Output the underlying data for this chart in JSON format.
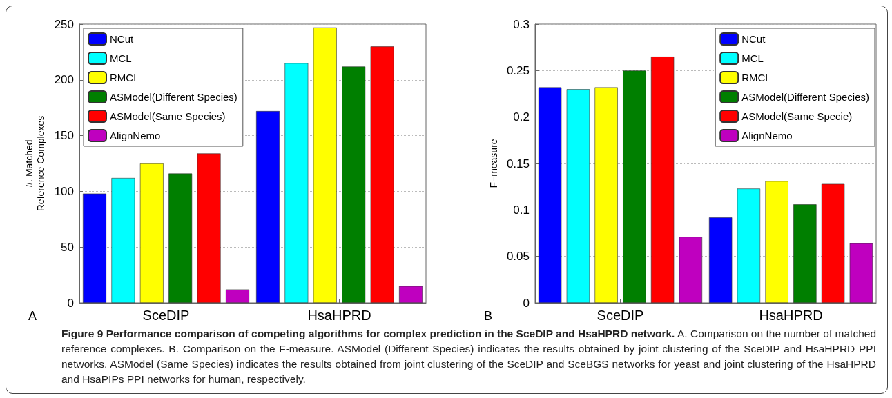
{
  "chart_data": [
    {
      "type": "bar",
      "ylabel": "#. Matched\nReference Complexes",
      "categories": [
        "SceDIP",
        "HsaHPRD"
      ],
      "ylim": [
        0,
        250
      ],
      "yticks": [
        0,
        50,
        100,
        150,
        200,
        250
      ],
      "grid": "y",
      "legend": "top left",
      "series": [
        {
          "name": "NCut",
          "color": "#0000ff",
          "values": [
            98,
            172
          ]
        },
        {
          "name": "MCL",
          "color": "#00ffff",
          "values": [
            112,
            215
          ]
        },
        {
          "name": "RMCL",
          "color": "#ffff00",
          "values": [
            125,
            247
          ]
        },
        {
          "name": "ASModel(Different Species)",
          "color": "#007f00",
          "values": [
            116,
            212
          ]
        },
        {
          "name": "ASModel(Same Species)",
          "color": "#ff0000",
          "values": [
            134,
            230
          ]
        },
        {
          "name": "AlignNemo",
          "color": "#bf00bf",
          "values": [
            12,
            15
          ]
        }
      ],
      "annotations": [
        "A",
        "Figure 9 Performance comparison of competing algorithms for complex prediction in the SceDIP and HsaHPRD network.",
        "A. Comparison on the number of matched reference complexes. B. Comparison on the F-measure. ASModel (Different Species) indicates the results obtained by joint clustering of the SceDIP and HsaHPRD PPI networks. ASModel (Same Species) indicates the results obtained from joint clustering of the SceDIP and SceBGS networks for yeast and joint clustering of the HsaHPRD and HsaPIPs PPI networks for human, respectively."
      ]
    },
    {
      "type": "bar",
      "ylabel": "F−measure",
      "categories": [
        "SceDIP",
        "HsaHPRD"
      ],
      "ylim": [
        0,
        0.3
      ],
      "yticks": [
        0,
        0.05,
        0.1,
        0.15,
        0.2,
        0.25,
        0.3
      ],
      "grid": "y",
      "legend": "top right",
      "series": [
        {
          "name": "NCut",
          "color": "#0000ff",
          "values": [
            0.232,
            0.092
          ]
        },
        {
          "name": "MCL",
          "color": "#00ffff",
          "values": [
            0.23,
            0.123
          ]
        },
        {
          "name": "RMCL",
          "color": "#ffff00",
          "values": [
            0.232,
            0.131
          ]
        },
        {
          "name": "ASModel(Different Species)",
          "color": "#007f00",
          "values": [
            0.25,
            0.106
          ]
        },
        {
          "name": "ASModel(Same Specie)",
          "color": "#ff0000",
          "values": [
            0.265,
            0.128
          ]
        },
        {
          "name": "AlignNemo",
          "color": "#bf00bf",
          "values": [
            0.071,
            0.064
          ]
        }
      ],
      "annotations": [
        "B"
      ]
    }
  ]
}
